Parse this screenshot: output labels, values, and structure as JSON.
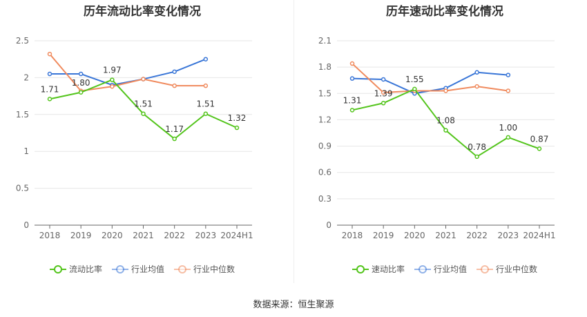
{
  "source_text": "数据来源：恒生聚源",
  "chart_data": [
    {
      "type": "line",
      "title": "历年流动比率变化情况",
      "categories": [
        "2018",
        "2019",
        "2020",
        "2021",
        "2022",
        "2023",
        "2024H1"
      ],
      "ylim": [
        0,
        2.5
      ],
      "yticks": [
        "0",
        "0.5",
        "1",
        "1.5",
        "2",
        "2.5"
      ],
      "ytick_values": [
        0,
        0.5,
        1,
        1.5,
        2,
        2.5
      ],
      "series": [
        {
          "name": "流动比率",
          "color": "#52c41a",
          "values": [
            1.71,
            1.8,
            1.97,
            1.51,
            1.17,
            1.51,
            1.32
          ],
          "labels": [
            "1.71",
            "1.80",
            "1.97",
            "1.51",
            "1.17",
            "1.51",
            "1.32"
          ]
        },
        {
          "name": "行业均值",
          "color": "#3875d7",
          "values": [
            2.05,
            2.05,
            1.9,
            1.98,
            2.08,
            2.25,
            null
          ]
        },
        {
          "name": "行业中位数",
          "color": "#f08a5d",
          "values": [
            2.32,
            1.82,
            1.88,
            1.98,
            1.89,
            1.89,
            null
          ]
        }
      ]
    },
    {
      "type": "line",
      "title": "历年速动比率变化情况",
      "categories": [
        "2018",
        "2019",
        "2020",
        "2021",
        "2022",
        "2023",
        "2024H1"
      ],
      "ylim": [
        0,
        2.1
      ],
      "yticks": [
        "0",
        "0.3",
        "0.6",
        "0.9",
        "1.2",
        "1.5",
        "1.8",
        "2.1"
      ],
      "ytick_values": [
        0,
        0.3,
        0.6,
        0.9,
        1.2,
        1.5,
        1.8,
        2.1
      ],
      "series": [
        {
          "name": "速动比率",
          "color": "#52c41a",
          "values": [
            1.31,
            1.39,
            1.55,
            1.08,
            0.78,
            1.0,
            0.87
          ],
          "labels": [
            "1.31",
            "1.39",
            "1.55",
            "1.08",
            "0.78",
            "1.00",
            "0.87"
          ]
        },
        {
          "name": "行业均值",
          "color": "#3875d7",
          "values": [
            1.67,
            1.66,
            1.5,
            1.56,
            1.74,
            1.71,
            null
          ]
        },
        {
          "name": "行业中位数",
          "color": "#f08a5d",
          "values": [
            1.84,
            1.51,
            1.53,
            1.53,
            1.58,
            1.53,
            null
          ]
        }
      ]
    }
  ]
}
